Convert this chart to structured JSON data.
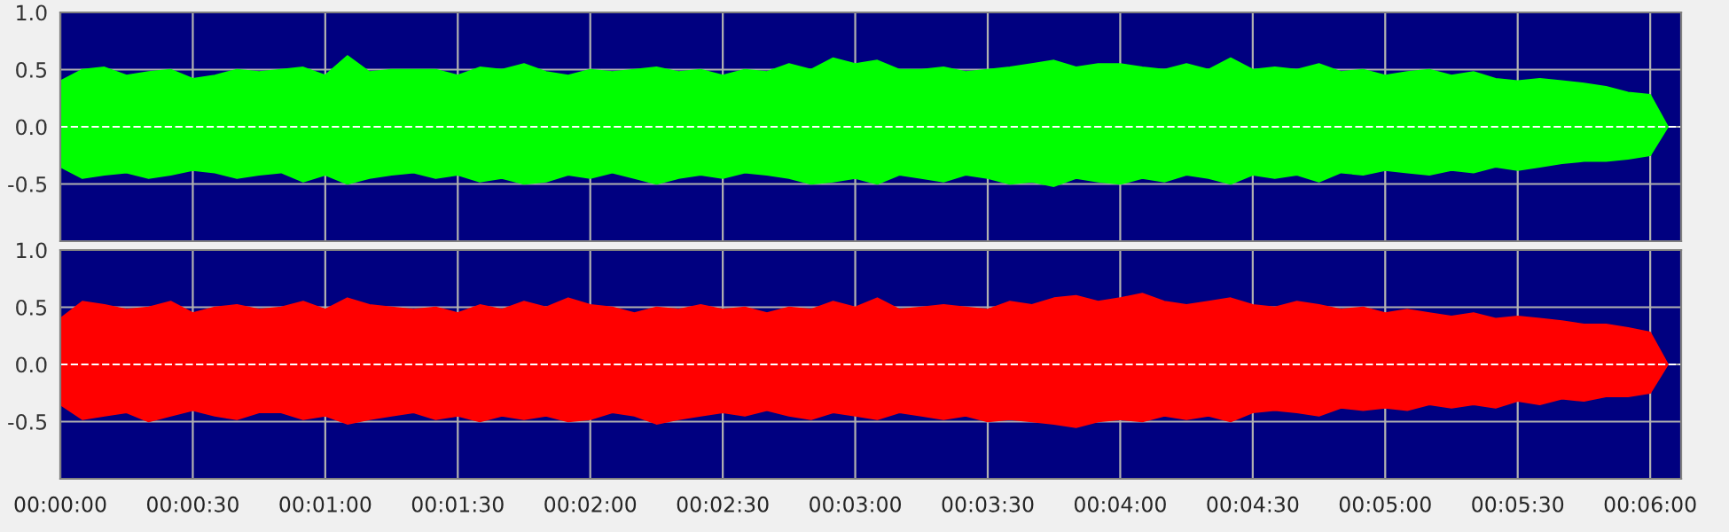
{
  "chart_data": [
    {
      "type": "area",
      "tick_labels": "y",
      "grid": true,
      "xlim": [
        0,
        367
      ],
      "ylim": [
        -1,
        1
      ],
      "x": [
        0,
        5,
        10,
        15,
        20,
        25,
        30,
        35,
        40,
        45,
        50,
        55,
        60,
        65,
        70,
        75,
        80,
        85,
        90,
        95,
        100,
        105,
        110,
        115,
        120,
        125,
        130,
        135,
        140,
        145,
        150,
        155,
        160,
        165,
        170,
        175,
        180,
        185,
        190,
        195,
        200,
        205,
        210,
        215,
        220,
        225,
        230,
        235,
        240,
        245,
        250,
        255,
        260,
        265,
        270,
        275,
        280,
        285,
        290,
        295,
        300,
        305,
        310,
        315,
        320,
        325,
        330,
        335,
        340,
        345,
        350,
        355,
        360,
        364
      ],
      "xticks": [
        0,
        30,
        60,
        90,
        120,
        150,
        180,
        210,
        240,
        270,
        300,
        330,
        360
      ],
      "yticks": [
        {
          "value": 1,
          "label": "1.0"
        },
        {
          "value": 0.5,
          "label": "0.5"
        },
        {
          "value": 0,
          "label": "0.0"
        },
        {
          "value": -0.5,
          "label": "-0.5"
        }
      ],
      "ref_lines": [
        {
          "axis": "y",
          "value": 0,
          "color": "#ffffff",
          "line_style": "dashed"
        }
      ],
      "series": [
        {
          "color": "#00ff00",
          "values": [
            0.4,
            0.5,
            0.52,
            0.45,
            0.48,
            0.5,
            0.42,
            0.45,
            0.5,
            0.48,
            0.5,
            0.52,
            0.45,
            0.62,
            0.48,
            0.5,
            0.5,
            0.5,
            0.45,
            0.52,
            0.5,
            0.55,
            0.48,
            0.45,
            0.5,
            0.48,
            0.5,
            0.52,
            0.48,
            0.5,
            0.45,
            0.5,
            0.48,
            0.55,
            0.5,
            0.6,
            0.55,
            0.58,
            0.5,
            0.5,
            0.52,
            0.48,
            0.5,
            0.52,
            0.55,
            0.58,
            0.52,
            0.55,
            0.55,
            0.52,
            0.5,
            0.55,
            0.5,
            0.6,
            0.5,
            0.52,
            0.5,
            0.55,
            0.48,
            0.5,
            0.45,
            0.48,
            0.5,
            0.45,
            0.48,
            0.42,
            0.4,
            0.42,
            0.4,
            0.38,
            0.35,
            0.3,
            0.28,
            0.0
          ]
        },
        {
          "color": "#00ff00",
          "values": [
            -0.35,
            -0.45,
            -0.42,
            -0.4,
            -0.45,
            -0.42,
            -0.38,
            -0.4,
            -0.45,
            -0.42,
            -0.4,
            -0.48,
            -0.42,
            -0.5,
            -0.45,
            -0.42,
            -0.4,
            -0.45,
            -0.42,
            -0.48,
            -0.45,
            -0.5,
            -0.48,
            -0.42,
            -0.45,
            -0.4,
            -0.45,
            -0.5,
            -0.45,
            -0.42,
            -0.45,
            -0.4,
            -0.42,
            -0.45,
            -0.5,
            -0.48,
            -0.45,
            -0.5,
            -0.42,
            -0.45,
            -0.48,
            -0.42,
            -0.45,
            -0.5,
            -0.48,
            -0.52,
            -0.45,
            -0.48,
            -0.5,
            -0.45,
            -0.48,
            -0.42,
            -0.45,
            -0.5,
            -0.42,
            -0.45,
            -0.42,
            -0.48,
            -0.4,
            -0.42,
            -0.38,
            -0.4,
            -0.42,
            -0.38,
            -0.4,
            -0.35,
            -0.38,
            -0.35,
            -0.32,
            -0.3,
            -0.3,
            -0.28,
            -0.25,
            0.0
          ]
        }
      ]
    },
    {
      "type": "area",
      "grid": true,
      "xlim": [
        0,
        367
      ],
      "ylim": [
        -1,
        1
      ],
      "x": [
        0,
        5,
        10,
        15,
        20,
        25,
        30,
        35,
        40,
        45,
        50,
        55,
        60,
        65,
        70,
        75,
        80,
        85,
        90,
        95,
        100,
        105,
        110,
        115,
        120,
        125,
        130,
        135,
        140,
        145,
        150,
        155,
        160,
        165,
        170,
        175,
        180,
        185,
        190,
        195,
        200,
        205,
        210,
        215,
        220,
        225,
        230,
        235,
        240,
        245,
        250,
        255,
        260,
        265,
        270,
        275,
        280,
        285,
        290,
        295,
        300,
        305,
        310,
        315,
        320,
        325,
        330,
        335,
        340,
        345,
        350,
        355,
        360,
        364
      ],
      "xticks": [
        {
          "value": 0,
          "label": "00:00:00"
        },
        {
          "value": 30,
          "label": "00:00:30"
        },
        {
          "value": 60,
          "label": "00:01:00"
        },
        {
          "value": 90,
          "label": "00:01:30"
        },
        {
          "value": 120,
          "label": "00:02:00"
        },
        {
          "value": 150,
          "label": "00:02:30"
        },
        {
          "value": 180,
          "label": "00:03:00"
        },
        {
          "value": 210,
          "label": "00:03:30"
        },
        {
          "value": 240,
          "label": "00:04:00"
        },
        {
          "value": 270,
          "label": "00:04:30"
        },
        {
          "value": 300,
          "label": "00:05:00"
        },
        {
          "value": 330,
          "label": "00:05:30"
        },
        {
          "value": 360,
          "label": "00:06:00"
        }
      ],
      "yticks": [
        {
          "value": 1,
          "label": "1.0"
        },
        {
          "value": 0.5,
          "label": "0.5"
        },
        {
          "value": 0,
          "label": "0.0"
        },
        {
          "value": -0.5,
          "label": "-0.5"
        }
      ],
      "ref_lines": [
        {
          "axis": "y",
          "value": 0,
          "color": "#ffffff",
          "line_style": "dashed"
        }
      ],
      "series": [
        {
          "color": "#ff0000",
          "values": [
            0.4,
            0.55,
            0.52,
            0.48,
            0.5,
            0.55,
            0.45,
            0.5,
            0.52,
            0.48,
            0.5,
            0.55,
            0.48,
            0.58,
            0.52,
            0.5,
            0.48,
            0.5,
            0.45,
            0.52,
            0.48,
            0.55,
            0.5,
            0.58,
            0.52,
            0.5,
            0.45,
            0.5,
            0.48,
            0.52,
            0.48,
            0.5,
            0.45,
            0.5,
            0.48,
            0.55,
            0.5,
            0.58,
            0.48,
            0.5,
            0.52,
            0.5,
            0.48,
            0.55,
            0.52,
            0.58,
            0.6,
            0.55,
            0.58,
            0.62,
            0.55,
            0.52,
            0.55,
            0.58,
            0.52,
            0.5,
            0.55,
            0.52,
            0.48,
            0.5,
            0.45,
            0.48,
            0.45,
            0.42,
            0.45,
            0.4,
            0.42,
            0.4,
            0.38,
            0.35,
            0.35,
            0.32,
            0.28,
            0.0
          ]
        },
        {
          "color": "#ff0000",
          "values": [
            -0.35,
            -0.48,
            -0.45,
            -0.42,
            -0.5,
            -0.45,
            -0.4,
            -0.45,
            -0.48,
            -0.42,
            -0.42,
            -0.48,
            -0.45,
            -0.52,
            -0.48,
            -0.45,
            -0.42,
            -0.48,
            -0.45,
            -0.5,
            -0.45,
            -0.48,
            -0.45,
            -0.5,
            -0.48,
            -0.42,
            -0.45,
            -0.52,
            -0.48,
            -0.45,
            -0.42,
            -0.45,
            -0.4,
            -0.45,
            -0.48,
            -0.42,
            -0.45,
            -0.48,
            -0.42,
            -0.45,
            -0.48,
            -0.45,
            -0.5,
            -0.48,
            -0.5,
            -0.52,
            -0.55,
            -0.5,
            -0.48,
            -0.5,
            -0.45,
            -0.48,
            -0.45,
            -0.5,
            -0.42,
            -0.4,
            -0.42,
            -0.45,
            -0.38,
            -0.4,
            -0.38,
            -0.4,
            -0.35,
            -0.38,
            -0.35,
            -0.38,
            -0.32,
            -0.35,
            -0.3,
            -0.32,
            -0.28,
            -0.28,
            -0.25,
            0.0
          ]
        }
      ]
    }
  ]
}
